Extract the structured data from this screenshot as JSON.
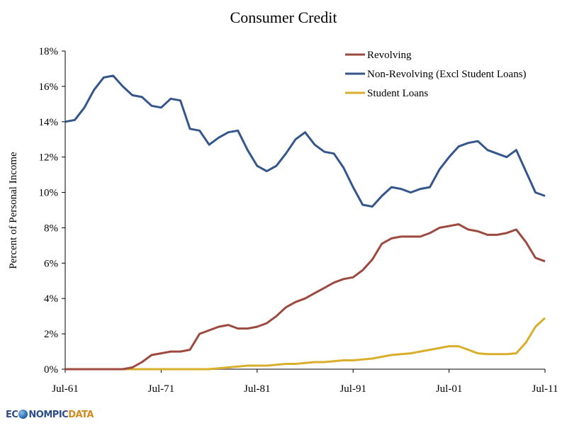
{
  "chart_data": {
    "type": "line",
    "title": "Consumer Credit",
    "xlabel": "",
    "ylabel": "Percent of Personal Income",
    "ylim": [
      0,
      18
    ],
    "xlim": [
      1961,
      2011
    ],
    "grid": false,
    "legend_position": "top-right",
    "y_ticks": [
      "0%",
      "2%",
      "4%",
      "6%",
      "8%",
      "10%",
      "12%",
      "14%",
      "16%",
      "18%"
    ],
    "y_tick_values": [
      0,
      2,
      4,
      6,
      8,
      10,
      12,
      14,
      16,
      18
    ],
    "x_ticks": [
      "Jul-61",
      "Jul-71",
      "Jul-81",
      "Jul-91",
      "Jul-01",
      "Jul-11"
    ],
    "x_tick_values": [
      1961,
      1971,
      1981,
      1991,
      2001,
      2011
    ],
    "x": [
      1961,
      1962,
      1963,
      1964,
      1965,
      1966,
      1967,
      1968,
      1969,
      1970,
      1971,
      1972,
      1973,
      1974,
      1975,
      1976,
      1977,
      1978,
      1979,
      1980,
      1981,
      1982,
      1983,
      1984,
      1985,
      1986,
      1987,
      1988,
      1989,
      1990,
      1991,
      1992,
      1993,
      1994,
      1995,
      1996,
      1997,
      1998,
      1999,
      2000,
      2001,
      2002,
      2003,
      2004,
      2005,
      2006,
      2007,
      2008,
      2009,
      2010,
      2011
    ],
    "series": [
      {
        "name": "Revolving",
        "color": "#9c4a40",
        "values": [
          0,
          0,
          0,
          0,
          0,
          0,
          0,
          0.1,
          0.4,
          0.8,
          0.9,
          1.0,
          1.0,
          1.1,
          2.0,
          2.2,
          2.4,
          2.5,
          2.3,
          2.3,
          2.4,
          2.6,
          3.0,
          3.5,
          3.8,
          4.0,
          4.3,
          4.6,
          4.9,
          5.1,
          5.2,
          5.6,
          6.2,
          7.1,
          7.4,
          7.5,
          7.5,
          7.5,
          7.7,
          8.0,
          8.1,
          8.2,
          7.9,
          7.8,
          7.6,
          7.6,
          7.7,
          7.9,
          7.2,
          6.3,
          6.1
        ]
      },
      {
        "name": "Non-Revolving (Excl Student Loans)",
        "color": "#35568c",
        "values": [
          14.0,
          14.1,
          14.8,
          15.8,
          16.5,
          16.6,
          16.0,
          15.5,
          15.4,
          14.9,
          14.8,
          15.3,
          15.2,
          13.6,
          13.5,
          12.7,
          13.1,
          13.4,
          13.5,
          12.4,
          11.5,
          11.2,
          11.5,
          12.2,
          13.0,
          13.4,
          12.7,
          12.3,
          12.2,
          11.4,
          10.3,
          9.3,
          9.2,
          9.8,
          10.3,
          10.2,
          10.0,
          10.2,
          10.3,
          11.3,
          12.0,
          12.6,
          12.8,
          12.9,
          12.4,
          12.2,
          12.0,
          12.4,
          11.2,
          10.0,
          9.8
        ]
      },
      {
        "name": "Student Loans",
        "color": "#d9ae2b",
        "values": [
          0,
          0,
          0,
          0,
          0,
          0,
          0,
          0,
          0,
          0,
          0,
          0,
          0,
          0,
          0,
          0,
          0.05,
          0.1,
          0.15,
          0.2,
          0.2,
          0.2,
          0.25,
          0.3,
          0.3,
          0.35,
          0.4,
          0.4,
          0.45,
          0.5,
          0.5,
          0.55,
          0.6,
          0.7,
          0.8,
          0.85,
          0.9,
          1.0,
          1.1,
          1.2,
          1.3,
          1.3,
          1.1,
          0.9,
          0.85,
          0.85,
          0.85,
          0.9,
          1.5,
          2.4,
          2.9
        ]
      }
    ]
  },
  "branding": {
    "logo_part1": "EC",
    "logo_part2": "NOMPIC",
    "logo_part3": "DATA"
  }
}
